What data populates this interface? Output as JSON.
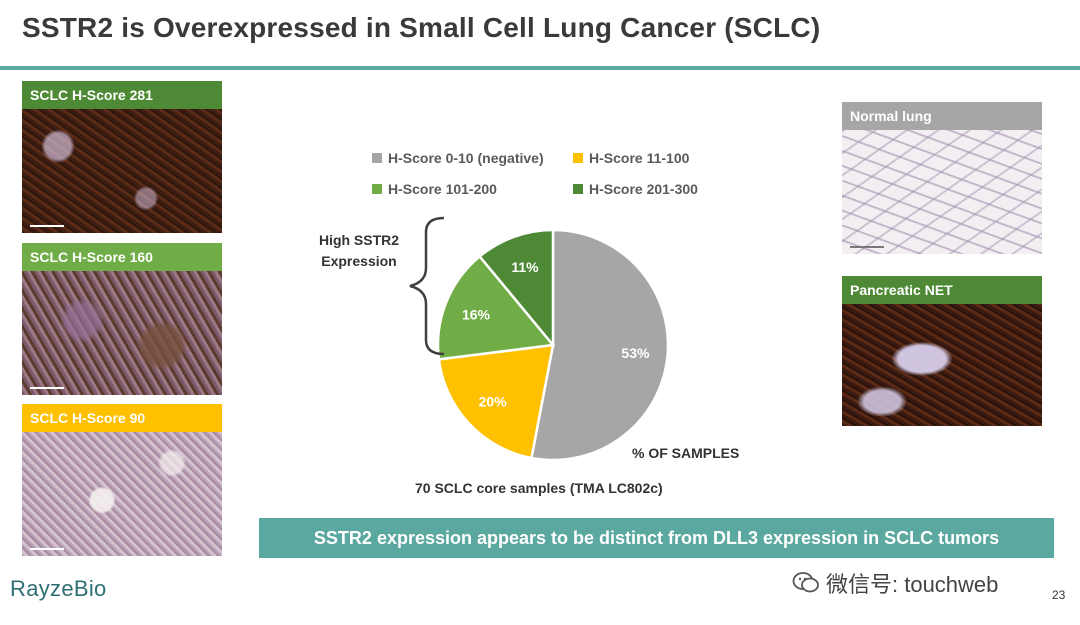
{
  "slide": {
    "title": "SSTR2 is Overexpressed in Small Cell Lung Cancer (SCLC)",
    "page_number": "23"
  },
  "left_panels": [
    {
      "label": "SCLC H-Score 281",
      "label_color": "#4e8a36"
    },
    {
      "label": "SCLC H-Score 160",
      "label_color": "#70ad47"
    },
    {
      "label": "SCLC H-Score 90",
      "label_color": "#ffc000"
    }
  ],
  "right_panels": [
    {
      "label": "Normal lung",
      "label_color": "#a6a6a6"
    },
    {
      "label": "Pancreatic NET",
      "label_color": "#4e8a36"
    }
  ],
  "chart_data": {
    "type": "pie",
    "title": "% OF SAMPLES",
    "caption": "70 SCLC core samples (TMA LC802c)",
    "slices": [
      {
        "label": "H-Score 0-10 (negative)",
        "value": 53,
        "display": "53%",
        "color": "#a6a6a6"
      },
      {
        "label": "H-Score 11-100",
        "value": 20,
        "display": "20%",
        "color": "#ffc000"
      },
      {
        "label": "H-Score 101-200",
        "value": 16,
        "display": "16%",
        "color": "#70ad47"
      },
      {
        "label": "H-Score 201-300",
        "value": 11,
        "display": "11%",
        "color": "#4e8a36"
      }
    ],
    "annotation": "High SSTR2 Expression",
    "legend_position": "top"
  },
  "banner": {
    "text": "SSTR2 expression appears to be distinct from DLL3 expression in SCLC tumors",
    "color": "#5ba8a0"
  },
  "footer": {
    "logo_text": "RayzeBio",
    "watermark_text": "微信号: touchweb"
  }
}
